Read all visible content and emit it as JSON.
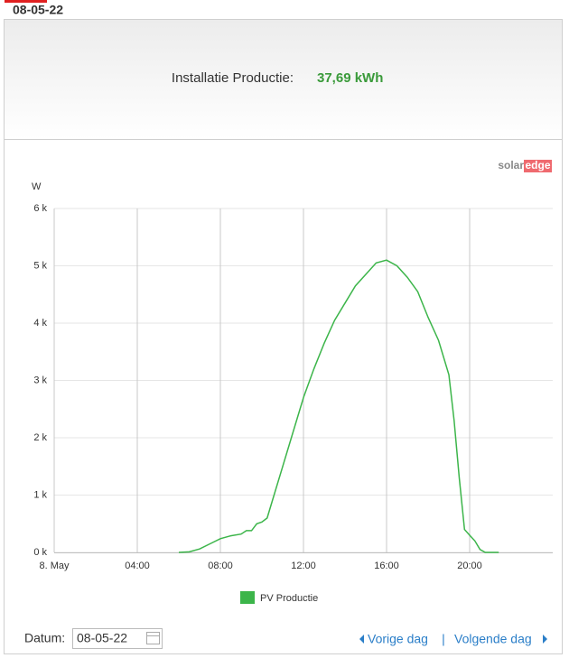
{
  "header": {
    "date": "08-05-22"
  },
  "summary": {
    "label": "Installatie Productie:",
    "value": "37,69 kWh"
  },
  "logo": {
    "part1": "solar",
    "part2": "edge"
  },
  "chart_data": {
    "type": "line",
    "y_axis_label": "W",
    "x": [
      6,
      6.5,
      7,
      7.5,
      8,
      8.5,
      9,
      9.25,
      9.5,
      9.75,
      10,
      10.25,
      10.5,
      11,
      11.5,
      12,
      12.5,
      13,
      13.5,
      14,
      14.5,
      15,
      15.5,
      16,
      16.5,
      17,
      17.5,
      18,
      18.5,
      19,
      19.25,
      19.5,
      19.75,
      20,
      20.25,
      20.5,
      20.75,
      21,
      21.4
    ],
    "series": [
      {
        "name": "PV Productie",
        "color": "#3cb54a",
        "values": [
          0,
          10,
          60,
          150,
          240,
          290,
          320,
          380,
          380,
          500,
          530,
          600,
          900,
          1500,
          2100,
          2700,
          3200,
          3650,
          4050,
          4350,
          4650,
          4850,
          5050,
          5100,
          5000,
          4800,
          4550,
          4100,
          3700,
          3100,
          2300,
          1300,
          400,
          300,
          200,
          50,
          0,
          0,
          0
        ]
      }
    ],
    "xlim": [
      0,
      24
    ],
    "xticks": [
      {
        "value": 0,
        "label": "8. May"
      },
      {
        "value": 4,
        "label": "04:00"
      },
      {
        "value": 8,
        "label": "08:00"
      },
      {
        "value": 12,
        "label": "12:00"
      },
      {
        "value": 16,
        "label": "16:00"
      },
      {
        "value": 20,
        "label": "20:00"
      }
    ],
    "ylim": [
      0,
      6000
    ],
    "yticks": [
      {
        "value": 0,
        "label": "0 k"
      },
      {
        "value": 1000,
        "label": "1 k"
      },
      {
        "value": 2000,
        "label": "2 k"
      },
      {
        "value": 3000,
        "label": "3 k"
      },
      {
        "value": 4000,
        "label": "4 k"
      },
      {
        "value": 5000,
        "label": "5 k"
      },
      {
        "value": 6000,
        "label": "6 k"
      }
    ],
    "grid": true
  },
  "footer": {
    "date_label": "Datum:",
    "date_value": "08-05-22",
    "prev": "Vorige dag",
    "separator": "|",
    "next": "Volgende dag"
  }
}
